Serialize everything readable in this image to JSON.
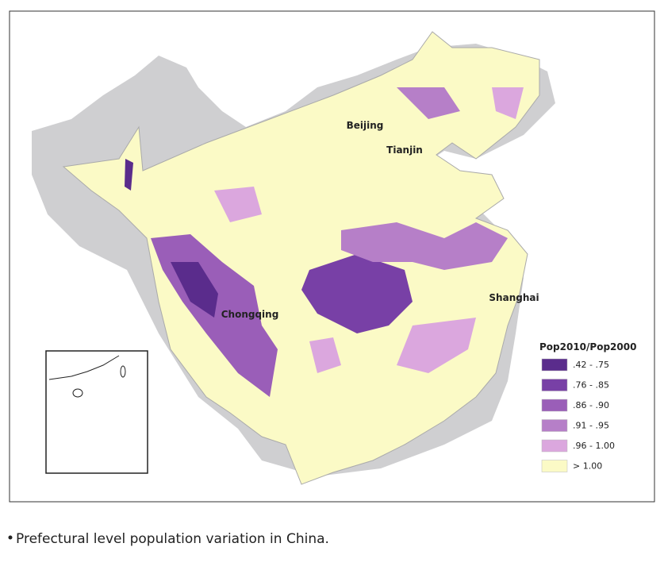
{
  "map": {
    "cities": [
      {
        "label": "Beijing"
      },
      {
        "label": "Tianjin"
      },
      {
        "label": "Chongqing"
      },
      {
        "label": "Shanghai"
      }
    ],
    "legend": {
      "title": "Pop2010/Pop2000",
      "items": [
        {
          "label": ".42 - .75",
          "color": "#5a2c8c"
        },
        {
          "label": ".76 - .85",
          "color": "#7840a6"
        },
        {
          "label": ".86 - .90",
          "color": "#9a5eb8"
        },
        {
          "label": ".91 - .95",
          "color": "#b67fc8"
        },
        {
          "label": ".96 - 1.00",
          "color": "#dba7de"
        },
        {
          "label": "> 1.00",
          "color": "#fbfac6"
        }
      ]
    },
    "caption": "Prefectural level population variation in China."
  }
}
